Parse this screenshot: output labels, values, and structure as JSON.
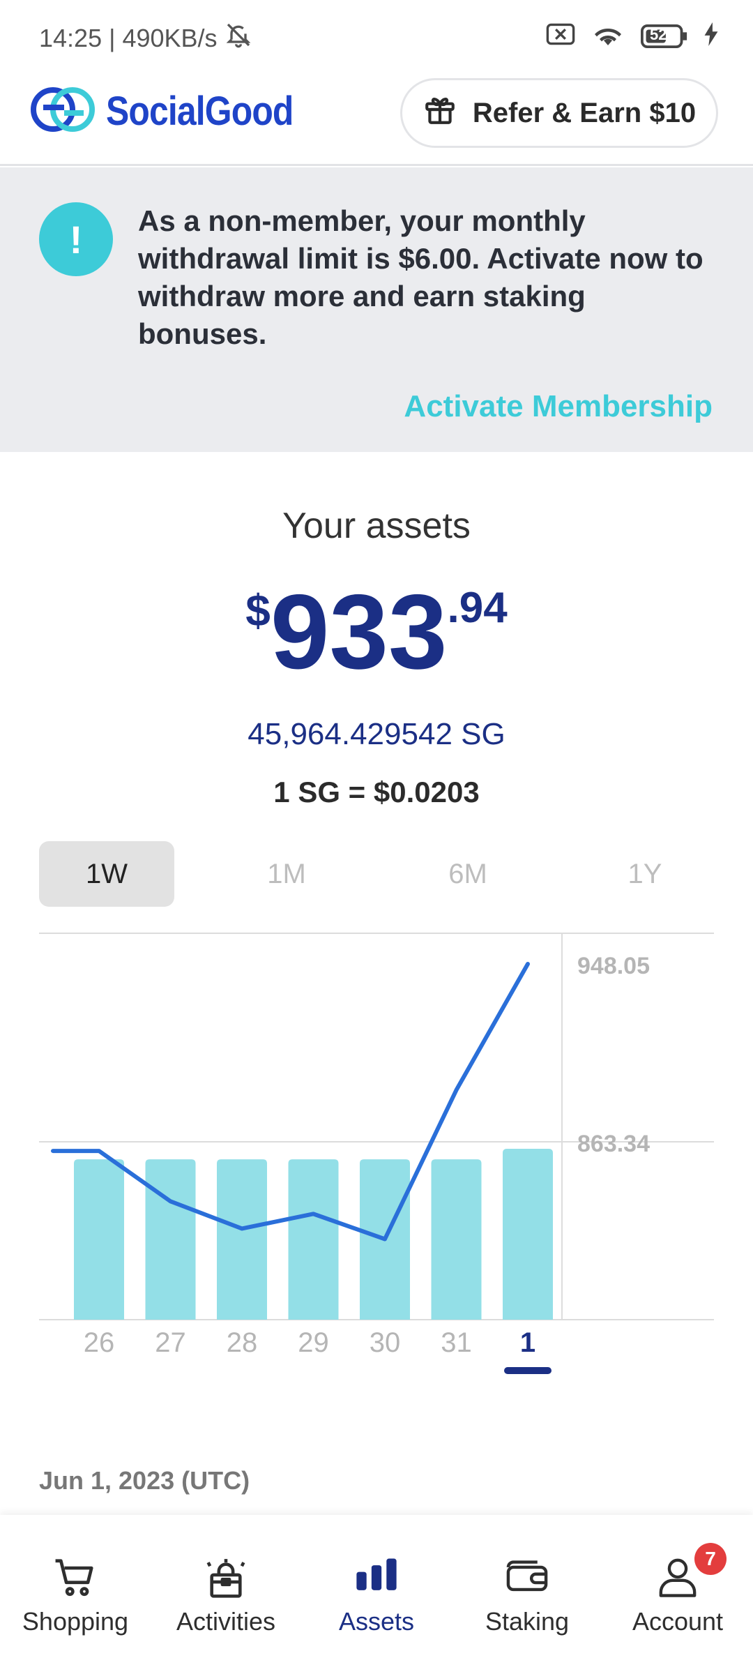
{
  "status_bar": {
    "time": "14:25",
    "network_speed": "490KB/s",
    "battery": "52"
  },
  "header": {
    "logo_text": "SocialGood",
    "refer_label": "Refer & Earn $10"
  },
  "banner": {
    "message": "As a non-member, your monthly withdrawal limit is $6.00. Activate now to withdraw more and earn staking bonuses.",
    "action_label": "Activate Membership"
  },
  "assets": {
    "title": "Your assets",
    "currency_symbol": "$",
    "amount_int": "933",
    "amount_dec": ".94",
    "sg_amount": "45,964.429542 SG",
    "rate": "1 SG = $0.0203"
  },
  "range_tabs": [
    {
      "label": "1W",
      "active": true
    },
    {
      "label": "1M",
      "active": false
    },
    {
      "label": "6M",
      "active": false
    },
    {
      "label": "1Y",
      "active": false
    }
  ],
  "chart_data": {
    "type": "bar",
    "categories": [
      "26",
      "27",
      "28",
      "29",
      "30",
      "31",
      "1"
    ],
    "selected_category": "1",
    "y_tick_labels": [
      "948.05",
      "863.34"
    ],
    "ylim": [
      778.63,
      948.05
    ],
    "series": [
      {
        "kind": "bar",
        "values": [
          855,
          855,
          855,
          855,
          855,
          855,
          860
        ]
      },
      {
        "kind": "line",
        "values": [
          859,
          835,
          822,
          829,
          817,
          888,
          948.05
        ]
      }
    ],
    "line_start_value": 859
  },
  "date_label": "Jun 1, 2023 (UTC)",
  "colors": {
    "bar": "#93dfe7",
    "line": "#2a6fd9",
    "accent": "#3dcbd8",
    "primary": "#1b2f85",
    "badge": "#e33d3d"
  },
  "nav": [
    {
      "id": "shopping",
      "label": "Shopping",
      "icon": "cart-icon",
      "active": false
    },
    {
      "id": "activities",
      "label": "Activities",
      "icon": "gift-box-icon",
      "active": false
    },
    {
      "id": "assets",
      "label": "Assets",
      "icon": "bar-chart-icon",
      "active": true
    },
    {
      "id": "staking",
      "label": "Staking",
      "icon": "wallet-icon",
      "active": false
    },
    {
      "id": "account",
      "label": "Account",
      "icon": "user-icon",
      "active": false,
      "badge": "7"
    }
  ]
}
